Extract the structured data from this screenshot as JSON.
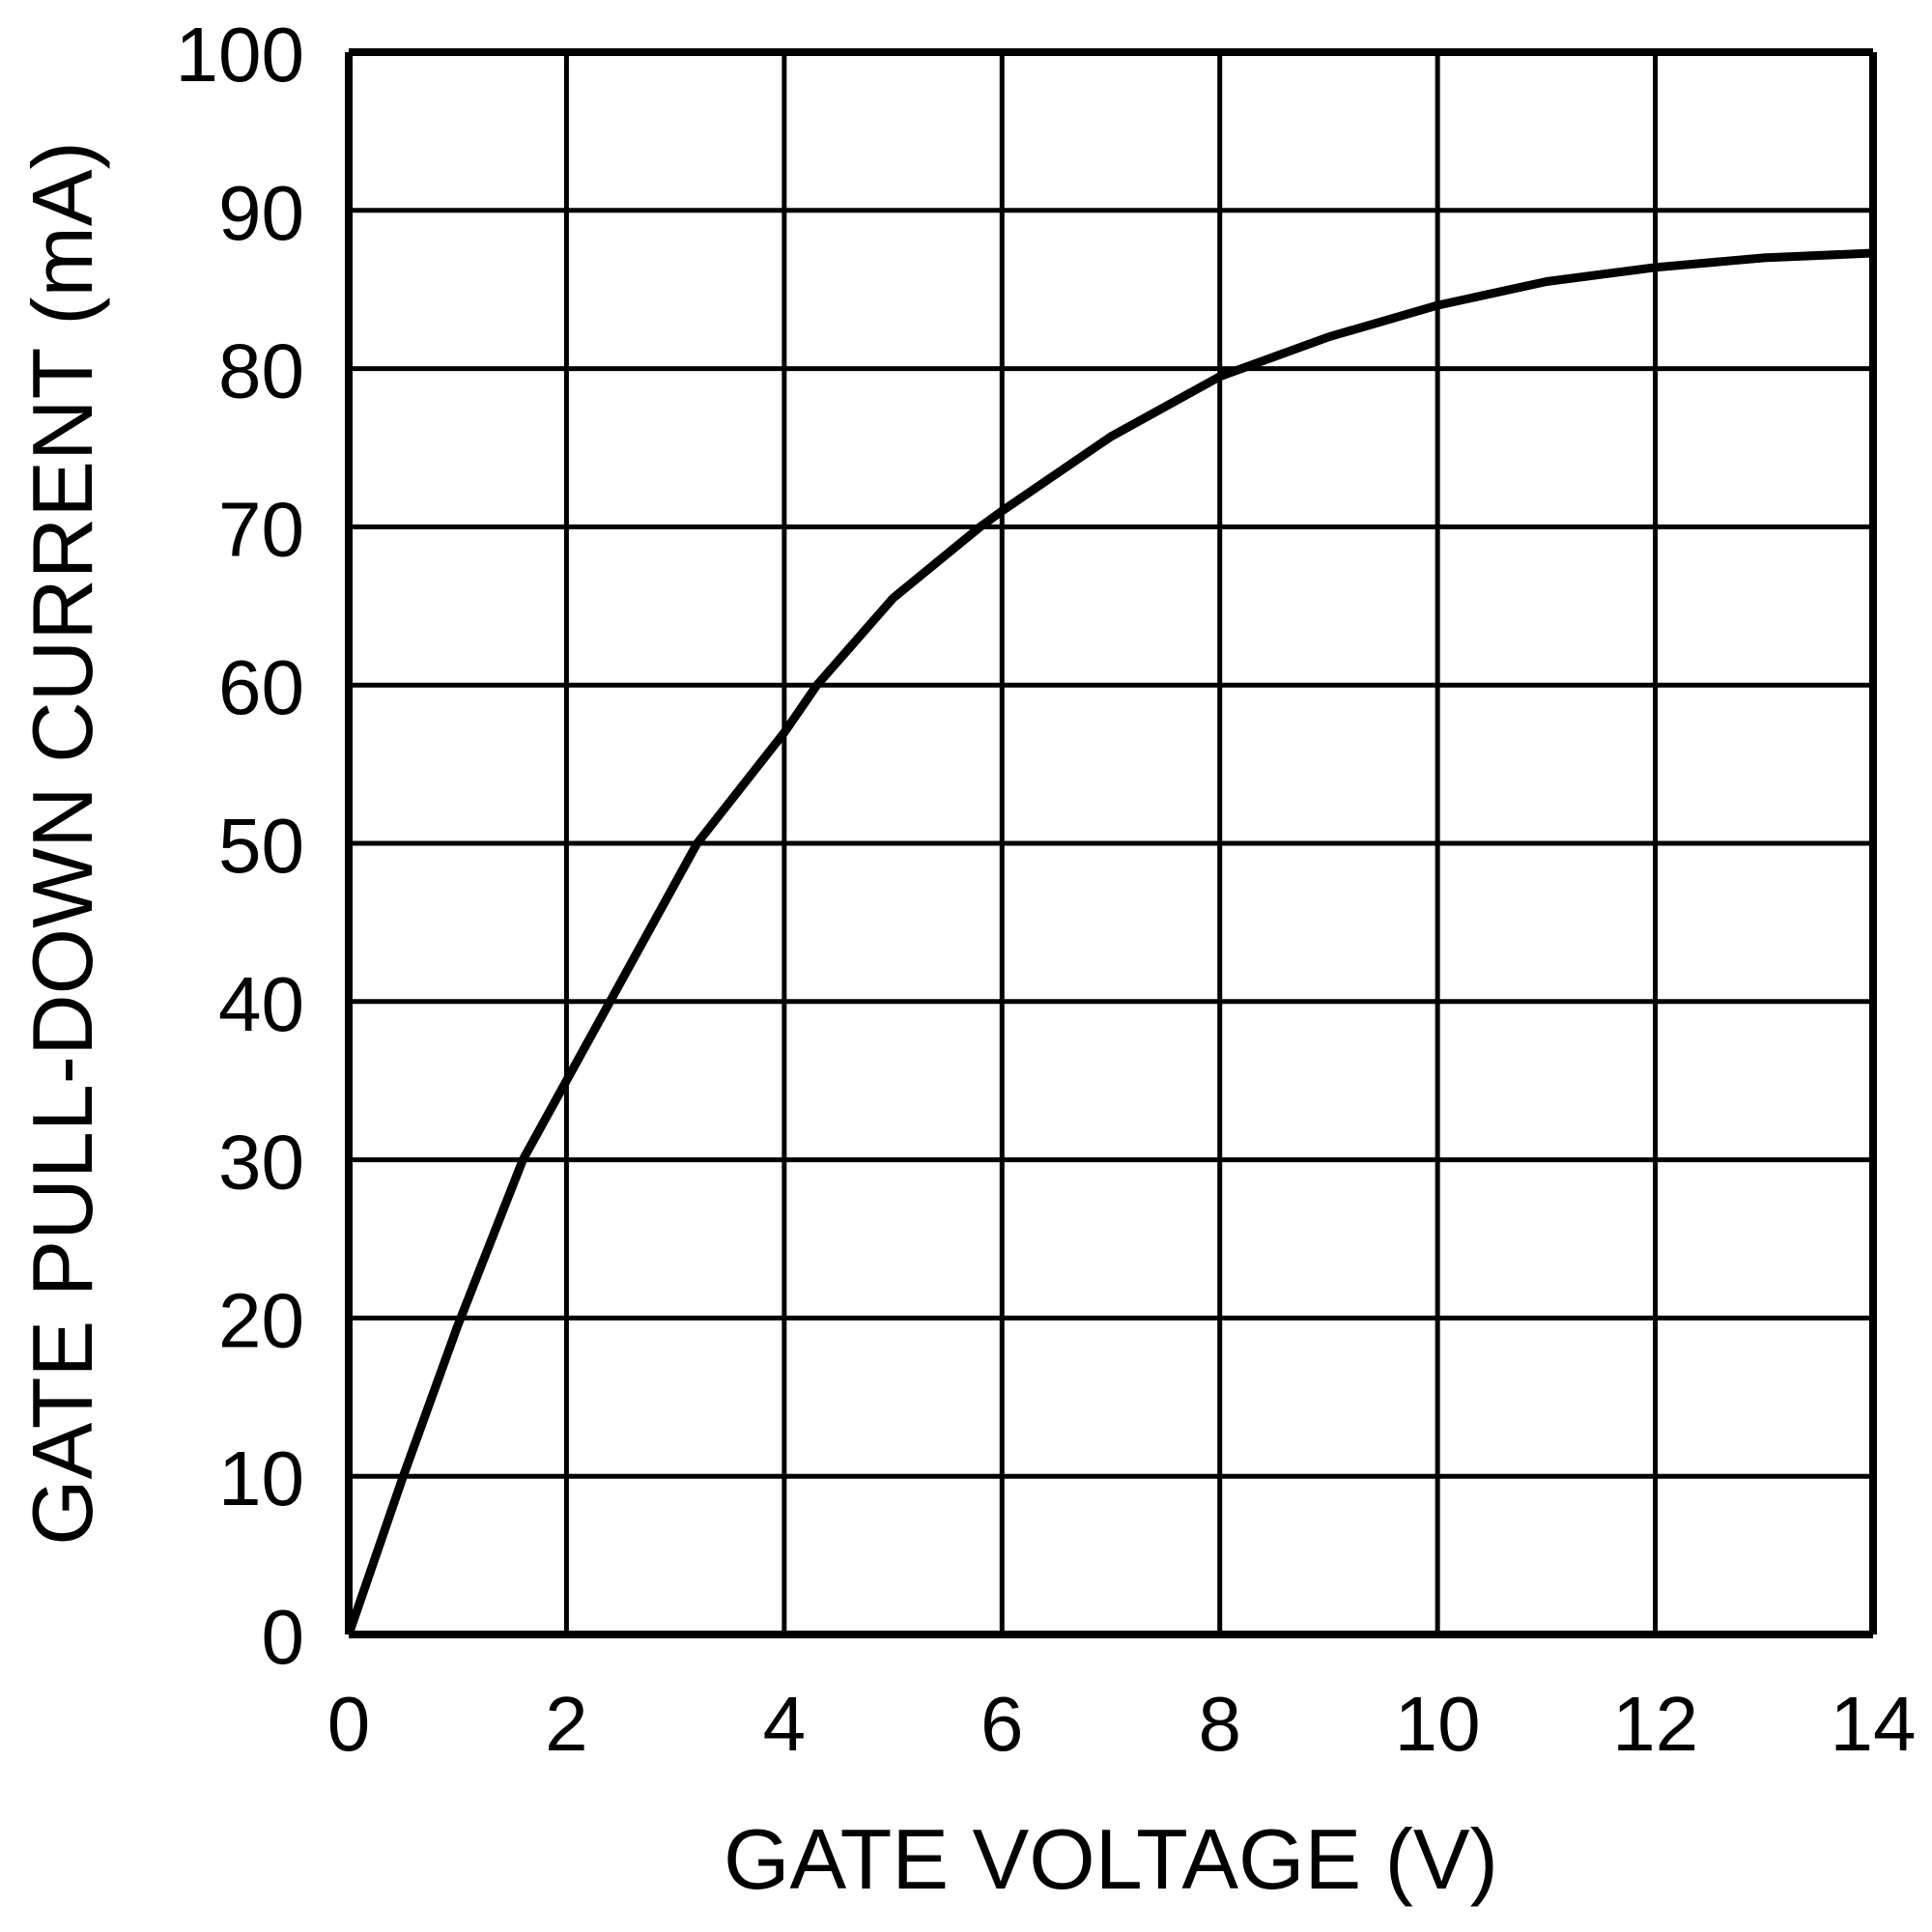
{
  "chart_data": {
    "type": "line",
    "title": "",
    "xlabel": "GATE VOLTAGE (V)",
    "ylabel": "GATE PULL-DOWN CURRENT (mA)",
    "xlim": [
      0,
      14
    ],
    "ylim": [
      0,
      100
    ],
    "xticks": [
      0,
      2,
      4,
      6,
      8,
      10,
      12,
      14
    ],
    "yticks": [
      0,
      10,
      20,
      30,
      40,
      50,
      60,
      70,
      80,
      90,
      100
    ],
    "grid": true,
    "line_color": "#000000",
    "series": [
      {
        "x": [
          0,
          0.5,
          1.0,
          1.6,
          2.0,
          2.4,
          3.2,
          4.0,
          4.3,
          5.0,
          5.8,
          6.0,
          7.0,
          8.0,
          9.0,
          10.0,
          11.0,
          12.0,
          13.0,
          14.0
        ],
        "y": [
          0,
          10,
          19.5,
          30,
          35,
          40,
          50,
          57,
          60,
          65.5,
          70,
          71,
          75.7,
          79.5,
          82,
          84,
          85.5,
          86.4,
          87,
          87.3
        ]
      }
    ]
  }
}
